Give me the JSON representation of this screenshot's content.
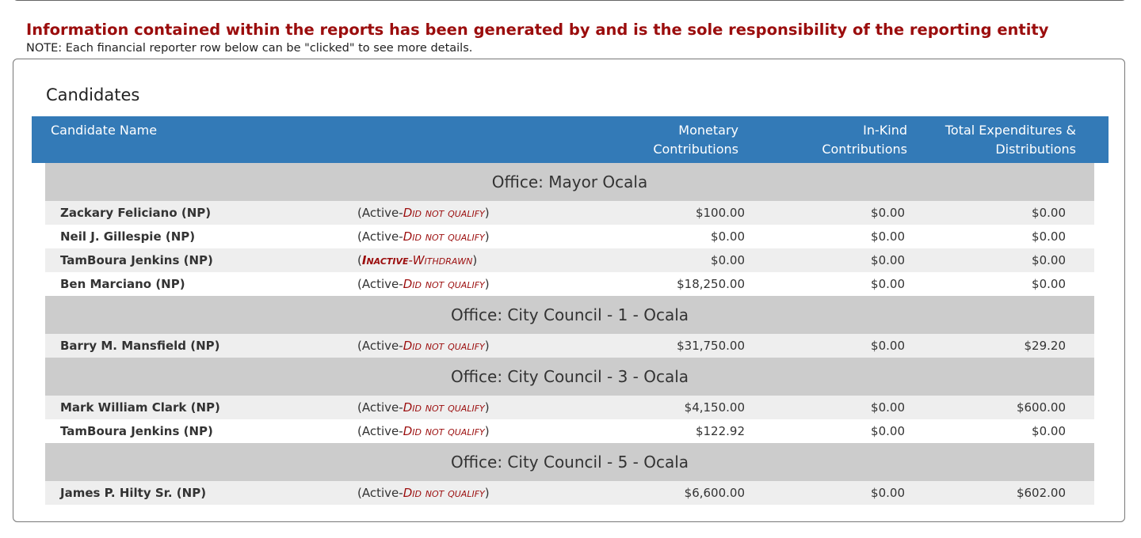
{
  "disclaimer": "Information contained within the reports has been generated by and is the sole responsibility of the reporting entity",
  "note": "NOTE: Each financial reporter row below can be \"clicked\" to see more details.",
  "section_title": "Candidates",
  "table": {
    "headers": {
      "name": "Candidate Name",
      "monetary_line1": "Monetary",
      "monetary_line2": "Contributions",
      "inkind_line1": "In-Kind",
      "inkind_line2": "Contributions",
      "expenditures_line1": "Total Expenditures &",
      "expenditures_line2": "Distributions"
    },
    "groups": [
      {
        "office": "Office: Mayor Ocala",
        "rows": [
          {
            "name": "Zackary Feliciano (NP)",
            "status_active": "Active",
            "status_detail": "Did not qualify",
            "monetary": "$100.00",
            "inkind": "$0.00",
            "expenditures": "$0.00"
          },
          {
            "name": "Neil J. Gillespie (NP)",
            "status_active": "Active",
            "status_detail": "Did not qualify",
            "monetary": "$0.00",
            "inkind": "$0.00",
            "expenditures": "$0.00"
          },
          {
            "name": "TamBoura Jenkins (NP)",
            "status_active": "Inactive",
            "status_detail": "Withdrawn",
            "monetary": "$0.00",
            "inkind": "$0.00",
            "expenditures": "$0.00"
          },
          {
            "name": "Ben Marciano (NP)",
            "status_active": "Active",
            "status_detail": "Did not qualify",
            "monetary": "$18,250.00",
            "inkind": "$0.00",
            "expenditures": "$0.00"
          }
        ]
      },
      {
        "office": "Office: City Council - 1 - Ocala",
        "rows": [
          {
            "name": "Barry M. Mansfield (NP)",
            "status_active": "Active",
            "status_detail": "Did not qualify",
            "monetary": "$31,750.00",
            "inkind": "$0.00",
            "expenditures": "$29.20"
          }
        ]
      },
      {
        "office": "Office: City Council - 3 - Ocala",
        "rows": [
          {
            "name": "Mark William Clark (NP)",
            "status_active": "Active",
            "status_detail": "Did not qualify",
            "monetary": "$4,150.00",
            "inkind": "$0.00",
            "expenditures": "$600.00"
          },
          {
            "name": "TamBoura Jenkins (NP)",
            "status_active": "Active",
            "status_detail": "Did not qualify",
            "monetary": "$122.92",
            "inkind": "$0.00",
            "expenditures": "$0.00"
          }
        ]
      },
      {
        "office": "Office: City Council - 5 - Ocala",
        "rows": [
          {
            "name": "James P. Hilty Sr. (NP)",
            "status_active": "Active",
            "status_detail": "Did not qualify",
            "monetary": "$6,600.00",
            "inkind": "$0.00",
            "expenditures": "$602.00"
          }
        ]
      }
    ]
  },
  "colors": {
    "header_bg": "#337ab7",
    "office_bg": "#cccccc",
    "row_alt_bg": "#eeeeee",
    "accent_red": "#9b0d0d"
  }
}
